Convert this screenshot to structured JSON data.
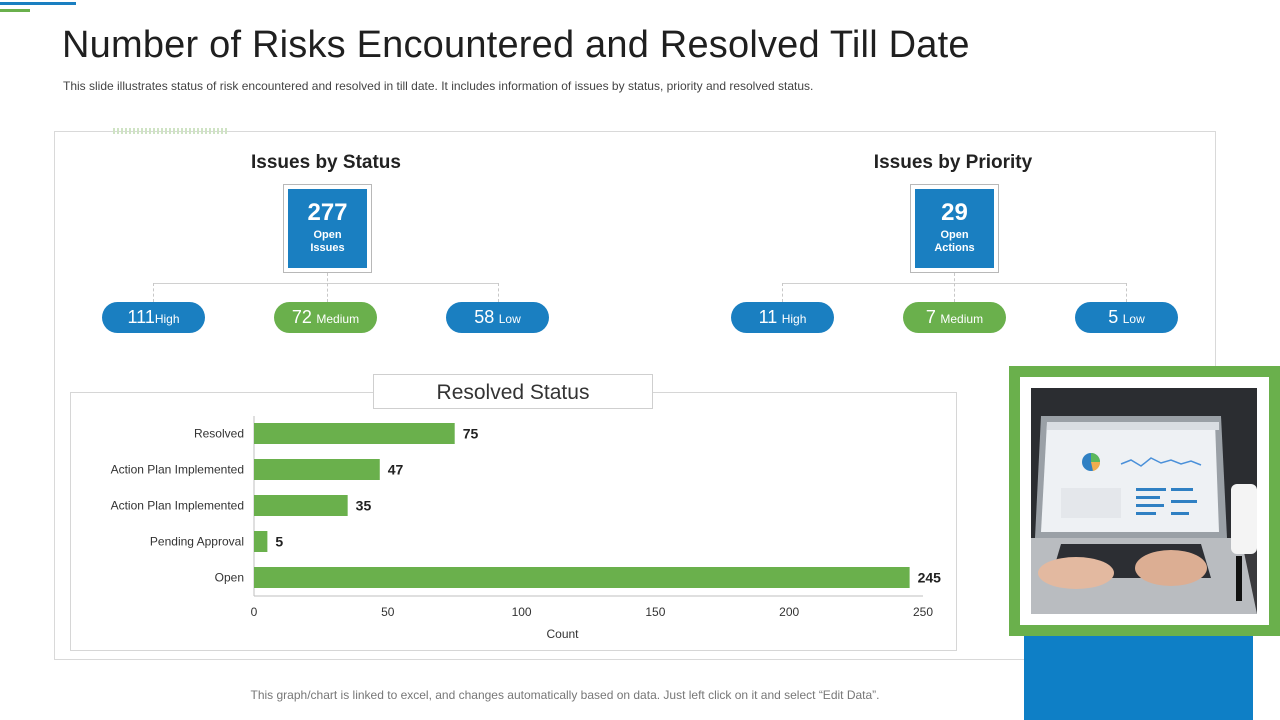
{
  "header": {
    "title": "Number of Risks Encountered and Resolved Till Date",
    "subtitle": "This slide illustrates status of risk encountered and resolved in till date. It includes information of issues by status, priority and resolved status."
  },
  "status_section": {
    "title": "Issues by Status",
    "kpi_value": "277",
    "kpi_label": "Open\nIssues",
    "pills": [
      {
        "value": "111",
        "label": "High"
      },
      {
        "value": "72",
        "label": "Medium"
      },
      {
        "value": "58",
        "label": "Low"
      }
    ]
  },
  "priority_section": {
    "title": "Issues by Priority",
    "kpi_value": "29",
    "kpi_label": "Open\nActions",
    "pills": [
      {
        "value": "11",
        "label": "High"
      },
      {
        "value": "7",
        "label": "Medium"
      },
      {
        "value": "5",
        "label": "Low"
      }
    ]
  },
  "chart_data": {
    "type": "bar",
    "orientation": "horizontal",
    "title": "Resolved Status",
    "categories": [
      "Resolved",
      "Action Plan Implemented",
      "Action Plan Implemented",
      "Pending Approval",
      "Open"
    ],
    "values": [
      75,
      47,
      35,
      5,
      245
    ],
    "xlabel": "Count",
    "ylabel": "",
    "xlim": [
      0,
      250
    ],
    "ticks": [
      0,
      50,
      100,
      150,
      200,
      250
    ],
    "bar_color": "#6ab04c",
    "grid": false
  },
  "footer": {
    "note": "This graph/chart is linked to excel, and changes automatically based on data. Just left click on it and select “Edit Data”."
  },
  "colors": {
    "blue": "#1a7fc1",
    "green": "#6ab04c"
  }
}
